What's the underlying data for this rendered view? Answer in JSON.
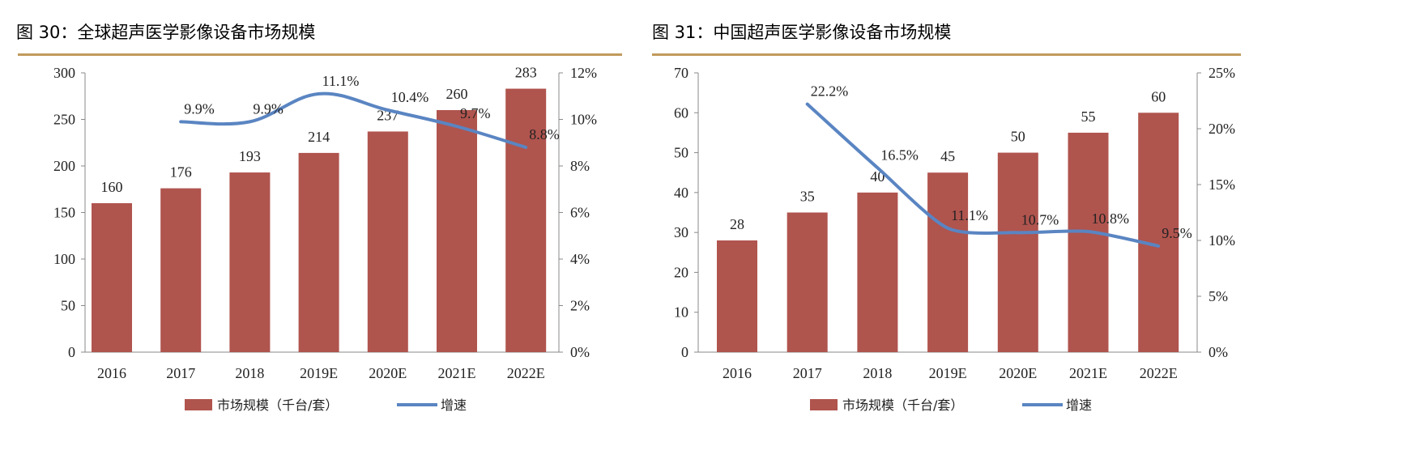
{
  "charts": [
    {
      "title_prefix": "图 30：",
      "title_num": "30",
      "title_text": "全球超声医学影像设备市场规模"
    },
    {
      "title_prefix": "图 31：",
      "title_num": "31",
      "title_text": "中国超声医学影像设备市场规模"
    }
  ],
  "chart_data": [
    {
      "type": "bar",
      "title": "图 30：全球超声医学影像设备市场规模",
      "categories": [
        "2016",
        "2017",
        "2018",
        "2019E",
        "2020E",
        "2021E",
        "2022E"
      ],
      "series": [
        {
          "name": "市场规模（千台/套）",
          "type": "bar",
          "axis": "left",
          "values": [
            160,
            176,
            193,
            214,
            237,
            260,
            283
          ],
          "labels": [
            "160",
            "176",
            "193",
            "214",
            "237",
            "260",
            "283"
          ],
          "color": "#b0544e"
        },
        {
          "name": "增速",
          "type": "line",
          "axis": "right",
          "values": [
            null,
            9.9,
            9.9,
            11.1,
            10.4,
            9.7,
            8.8
          ],
          "labels": [
            null,
            "9.9%",
            "9.9%",
            "11.1%",
            "10.4%",
            "9.7%",
            "8.8%"
          ],
          "color": "#5a85c2"
        }
      ],
      "yleft": {
        "lim": [
          0,
          300
        ],
        "ticks": [
          "0",
          "50",
          "100",
          "150",
          "200",
          "250",
          "300"
        ]
      },
      "yright": {
        "lim": [
          0,
          12
        ],
        "ticks": [
          "0%",
          "2%",
          "4%",
          "6%",
          "8%",
          "10%",
          "12%"
        ]
      },
      "grid": false,
      "legend": "bottom"
    },
    {
      "type": "bar",
      "title": "图 31：中国超声医学影像设备市场规模",
      "categories": [
        "2016",
        "2017",
        "2018",
        "2019E",
        "2020E",
        "2021E",
        "2022E"
      ],
      "series": [
        {
          "name": "市场规模（千台/套）",
          "type": "bar",
          "axis": "left",
          "values": [
            28,
            35,
            40,
            45,
            50,
            55,
            60
          ],
          "labels": [
            "28",
            "35",
            "40",
            "45",
            "50",
            "55",
            "60"
          ],
          "color": "#b0544e"
        },
        {
          "name": "增速",
          "type": "line",
          "axis": "right",
          "values": [
            null,
            22.2,
            16.5,
            11.1,
            10.7,
            10.8,
            9.5
          ],
          "labels": [
            null,
            "22.2%",
            "16.5%",
            "11.1%",
            "10.7%",
            "10.8%",
            "9.5%"
          ],
          "color": "#5a85c2"
        }
      ],
      "yleft": {
        "lim": [
          0,
          70
        ],
        "ticks": [
          "0",
          "10",
          "20",
          "30",
          "40",
          "50",
          "60",
          "70"
        ]
      },
      "yright": {
        "lim": [
          0,
          25
        ],
        "ticks": [
          "0%",
          "5%",
          "10%",
          "15%",
          "20%",
          "25%"
        ]
      },
      "grid": false,
      "legend": "bottom"
    }
  ]
}
